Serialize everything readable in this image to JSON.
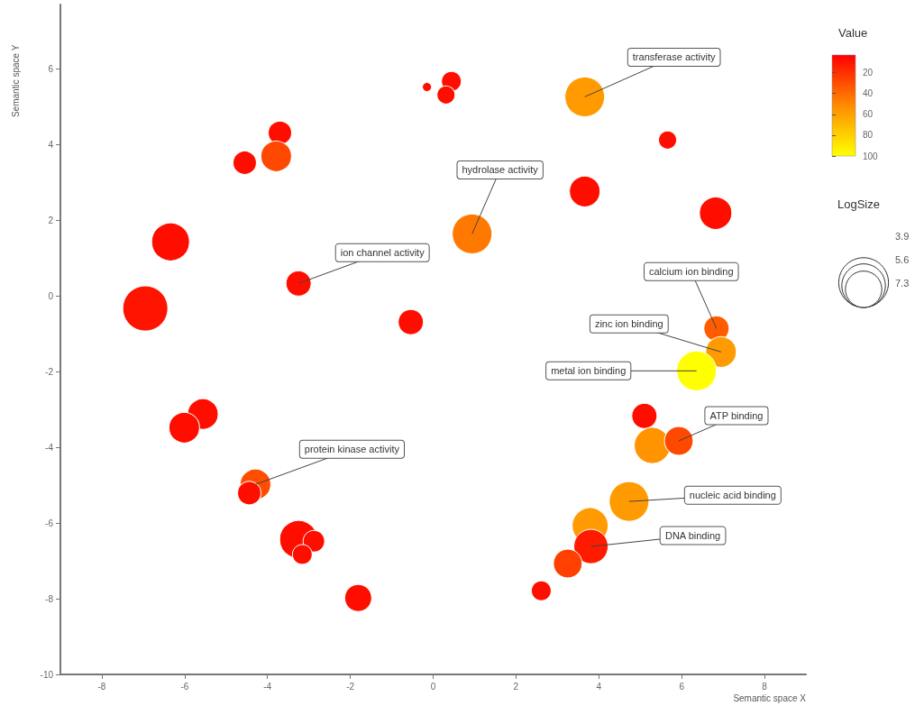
{
  "chart_data": {
    "type": "bubble",
    "xlabel": "Semantic space X",
    "ylabel": "Semantic space Y",
    "clabel": "Value",
    "legend_title": "LogSize",
    "marker": "circle",
    "grid": false,
    "xlim": [
      -9,
      9
    ],
    "xticks": [
      -8,
      -6,
      -4,
      -2,
      0,
      2,
      4,
      6,
      8
    ],
    "ylim": [
      -10,
      7.7
    ],
    "yticks": [
      -10,
      -8,
      -6,
      -4,
      -2,
      0,
      2,
      4,
      6
    ],
    "clim": [
      3,
      100
    ],
    "cticks": [
      20,
      40,
      60,
      80,
      100
    ],
    "size_legend": [
      3.9,
      5.6,
      7.3
    ],
    "x": [
      -0.15,
      0.44,
      0.31,
      3.66,
      5.66,
      -3.7,
      -3.79,
      -4.55,
      -6.34,
      -6.95,
      -3.25,
      -0.54,
      0.94,
      3.66,
      6.82,
      6.84,
      6.95,
      6.36,
      5.1,
      5.29,
      5.93,
      4.73,
      3.79,
      3.81,
      3.25,
      2.61,
      -5.56,
      -6.01,
      -4.29,
      -4.44,
      -3.25,
      -2.88,
      -3.16,
      -1.81
    ],
    "values": [
      5.52,
      5.67,
      5.31,
      5.26,
      4.12,
      4.31,
      3.69,
      3.52,
      1.43,
      -0.33,
      0.33,
      -0.69,
      1.64,
      2.76,
      2.19,
      -0.86,
      -1.48,
      -1.98,
      -3.17,
      -3.95,
      -3.83,
      -5.43,
      -6.07,
      -6.62,
      -7.07,
      -7.79,
      -3.12,
      -3.48,
      -4.98,
      -5.21,
      -6.43,
      -6.48,
      -6.83,
      -7.98
    ],
    "sizes": [
      0.24,
      1.16,
      0.96,
      4.64,
      0.96,
      1.62,
      2.77,
      1.62,
      4.23,
      5.99,
      1.88,
      1.88,
      4.64,
      2.77,
      3.1,
      1.88,
      2.77,
      4.64,
      1.88,
      3.83,
      2.45,
      4.64,
      3.83,
      3.46,
      2.45,
      1.16,
      2.77,
      2.77,
      2.77,
      1.62,
      4.23,
      1.38,
      1.16,
      2.16
    ],
    "cvalues": [
      8,
      8,
      8,
      58,
      8,
      8,
      28,
      8,
      8,
      10,
      8,
      8,
      45,
      8,
      8,
      35,
      58,
      100,
      8,
      55,
      28,
      58,
      58,
      12,
      25,
      8,
      8,
      8,
      30,
      8,
      8,
      8,
      8,
      8
    ],
    "annotations": [
      {
        "text": "transferase activity",
        "x": 3.66,
        "y": 5.26
      },
      {
        "text": "hydrolase activity",
        "x": 0.94,
        "y": 1.64
      },
      {
        "text": "ion channel activity",
        "x": -3.25,
        "y": 0.33
      },
      {
        "text": "calcium ion binding",
        "x": 6.84,
        "y": -0.86
      },
      {
        "text": "zinc ion binding",
        "x": 6.95,
        "y": -1.48
      },
      {
        "text": "metal ion binding",
        "x": 6.36,
        "y": -1.98
      },
      {
        "text": "ATP binding",
        "x": 5.93,
        "y": -3.83
      },
      {
        "text": "protein kinase activity",
        "x": -4.29,
        "y": -4.98
      },
      {
        "text": "nucleic acid binding",
        "x": 4.73,
        "y": -5.43
      },
      {
        "text": "DNA binding",
        "x": 3.81,
        "y": -6.62
      }
    ]
  }
}
